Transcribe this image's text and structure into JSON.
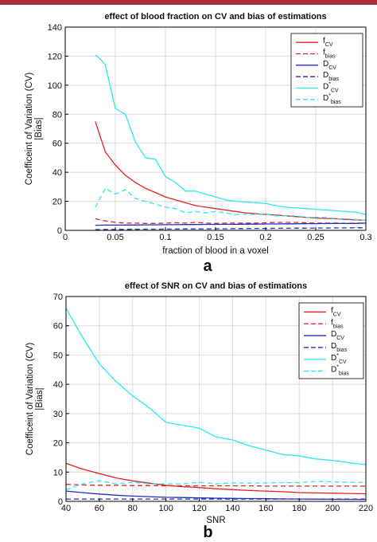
{
  "colors": {
    "topbar": "#a8323c",
    "f": "#e8201c",
    "D": "#1f2fbf",
    "Dstar": "#2ae8f0"
  },
  "chart_data": [
    {
      "type": "line",
      "panel_label": "a",
      "title": "effect of blood fraction on  CV and bias of estimations",
      "xlabel": "fraction of blood in a voxel",
      "ylabel": [
        "Coefficeint of Variation (CV)",
        "|Bias|"
      ],
      "xlim": [
        0,
        0.3
      ],
      "ylim": [
        0,
        140
      ],
      "xticks": [
        0,
        0.05,
        0.1,
        0.15,
        0.2,
        0.25,
        0.3
      ],
      "xtick_labels": [
        "0",
        "0.05",
        "0.1",
        "0.15",
        "0.2",
        "0.25",
        "0.3"
      ],
      "yticks": [
        0,
        20,
        40,
        60,
        80,
        100,
        120,
        140
      ],
      "ytick_labels": [
        "0",
        "20",
        "40",
        "60",
        "80",
        "100",
        "120",
        "140"
      ],
      "grid": true,
      "legend_position": "top-right",
      "series": [
        {
          "name": "f",
          "sub": "CV",
          "sup": "",
          "color": "#e8201c",
          "dash": "solid",
          "x": [
            0.03,
            0.04,
            0.05,
            0.06,
            0.07,
            0.08,
            0.09,
            0.1,
            0.11,
            0.12,
            0.13,
            0.14,
            0.15,
            0.16,
            0.17,
            0.18,
            0.19,
            0.2,
            0.21,
            0.22,
            0.23,
            0.24,
            0.25,
            0.26,
            0.27,
            0.28,
            0.29,
            0.3
          ],
          "y": [
            75,
            54,
            45,
            38,
            33,
            29,
            26,
            23,
            21,
            19,
            17,
            16,
            15,
            14,
            13,
            12,
            11.5,
            11,
            10.5,
            10,
            9.5,
            9,
            8.5,
            8.2,
            8,
            7.5,
            7.2,
            7
          ]
        },
        {
          "name": "f",
          "sub": "bias",
          "sup": "",
          "color": "#e8201c",
          "dash": "dashed",
          "x": [
            0.03,
            0.04,
            0.05,
            0.06,
            0.07,
            0.08,
            0.09,
            0.1,
            0.11,
            0.12,
            0.13,
            0.14,
            0.15,
            0.16,
            0.17,
            0.18,
            0.19,
            0.2,
            0.21,
            0.22,
            0.23,
            0.24,
            0.25,
            0.26,
            0.27,
            0.28,
            0.29,
            0.3
          ],
          "y": [
            8,
            6.5,
            5.5,
            5,
            5,
            4.8,
            4.8,
            5,
            5.2,
            5,
            5.5,
            5,
            4.8,
            5,
            5,
            5,
            5,
            5.2,
            5.5,
            5.5,
            5.5,
            5.2,
            5,
            5,
            5,
            4.8,
            5,
            5
          ]
        },
        {
          "name": "D",
          "sub": "CV",
          "sup": "",
          "color": "#1f2fbf",
          "dash": "solid",
          "x": [
            0.03,
            0.04,
            0.05,
            0.06,
            0.07,
            0.08,
            0.09,
            0.1,
            0.11,
            0.12,
            0.13,
            0.14,
            0.15,
            0.16,
            0.17,
            0.18,
            0.19,
            0.2,
            0.21,
            0.22,
            0.23,
            0.24,
            0.25,
            0.26,
            0.27,
            0.28,
            0.29,
            0.3
          ],
          "y": [
            3.5,
            3.6,
            3.6,
            3.7,
            3.7,
            3.8,
            3.8,
            3.9,
            3.9,
            4,
            4,
            4.1,
            4.1,
            4.2,
            4.2,
            4.3,
            4.3,
            4.4,
            4.4,
            4.5,
            4.5,
            4.6,
            4.6,
            4.7,
            4.7,
            4.8,
            4.8,
            5
          ]
        },
        {
          "name": "D",
          "sub": "bias",
          "sup": "",
          "color": "#1f2fbf",
          "dash": "dashed",
          "x": [
            0.03,
            0.04,
            0.05,
            0.06,
            0.07,
            0.08,
            0.09,
            0.1,
            0.11,
            0.12,
            0.13,
            0.14,
            0.15,
            0.16,
            0.17,
            0.18,
            0.19,
            0.2,
            0.21,
            0.22,
            0.23,
            0.24,
            0.25,
            0.26,
            0.27,
            0.28,
            0.29,
            0.3
          ],
          "y": [
            0.5,
            0.6,
            0.6,
            0.7,
            0.7,
            0.8,
            0.8,
            0.9,
            0.9,
            1,
            1,
            1,
            1.1,
            1.1,
            1.2,
            1.2,
            1.3,
            1.3,
            1.4,
            1.4,
            1.5,
            1.5,
            1.6,
            1.6,
            1.7,
            1.7,
            1.8,
            1.8
          ]
        },
        {
          "name": "D",
          "sub": "CV",
          "sup": "*",
          "color": "#2ae8f0",
          "dash": "solid",
          "x": [
            0.03,
            0.035,
            0.04,
            0.05,
            0.06,
            0.07,
            0.08,
            0.09,
            0.1,
            0.11,
            0.12,
            0.13,
            0.14,
            0.15,
            0.16,
            0.17,
            0.18,
            0.19,
            0.2,
            0.21,
            0.22,
            0.23,
            0.24,
            0.25,
            0.26,
            0.27,
            0.28,
            0.29,
            0.3
          ],
          "y": [
            121,
            118,
            114,
            84,
            80,
            61,
            50,
            49,
            37,
            33,
            27,
            27,
            25,
            23,
            21,
            20,
            19.5,
            19,
            18.5,
            17,
            16,
            15.5,
            15,
            14.5,
            14,
            13.5,
            13,
            12.5,
            11
          ]
        },
        {
          "name": "D",
          "sub": "bias",
          "sup": "*",
          "color": "#2ae8f0",
          "dash": "dashed",
          "x": [
            0.03,
            0.04,
            0.05,
            0.06,
            0.07,
            0.08,
            0.09,
            0.1,
            0.11,
            0.12,
            0.13,
            0.14,
            0.15,
            0.16,
            0.17,
            0.18,
            0.19,
            0.2,
            0.21,
            0.22,
            0.23,
            0.24,
            0.25,
            0.26,
            0.27,
            0.28,
            0.29,
            0.3
          ],
          "y": [
            16,
            29,
            25,
            28,
            22,
            20,
            18,
            16,
            15,
            12,
            13,
            12,
            13,
            12,
            11,
            11,
            11,
            11,
            10,
            10,
            10,
            9,
            9,
            9,
            8,
            8,
            7.5,
            7
          ]
        }
      ]
    },
    {
      "type": "line",
      "panel_label": "b",
      "title": "effect of SNR on  CV and bias of estimations",
      "xlabel": "SNR",
      "ylabel": [
        "Coefficeint of Variation (CV)",
        "|Bias|"
      ],
      "xlim": [
        40,
        220
      ],
      "ylim": [
        0,
        70
      ],
      "xticks": [
        40,
        60,
        80,
        100,
        120,
        140,
        160,
        180,
        200,
        220
      ],
      "xtick_labels": [
        "40",
        "60",
        "80",
        "100",
        "120",
        "140",
        "160",
        "180",
        "200",
        "220"
      ],
      "yticks": [
        0,
        10,
        20,
        30,
        40,
        50,
        60,
        70
      ],
      "ytick_labels": [
        "0",
        "10",
        "20",
        "30",
        "40",
        "50",
        "60",
        "70"
      ],
      "grid": true,
      "legend_position": "top-right",
      "series": [
        {
          "name": "f",
          "sub": "CV",
          "sup": "",
          "color": "#e8201c",
          "dash": "solid",
          "x": [
            40,
            50,
            60,
            70,
            80,
            90,
            100,
            110,
            120,
            130,
            140,
            150,
            160,
            170,
            180,
            190,
            200,
            210,
            220
          ],
          "y": [
            13,
            11,
            9.5,
            8,
            7,
            6.2,
            5.5,
            5,
            4.7,
            4.3,
            4,
            3.7,
            3.5,
            3.3,
            3,
            2.9,
            2.8,
            2.7,
            2.6
          ]
        },
        {
          "name": "f",
          "sub": "bias",
          "sup": "",
          "color": "#e8201c",
          "dash": "dashed",
          "x": [
            40,
            50,
            60,
            70,
            80,
            90,
            100,
            110,
            120,
            130,
            140,
            150,
            160,
            170,
            180,
            190,
            200,
            210,
            220
          ],
          "y": [
            5.8,
            5.6,
            5.5,
            5.5,
            5.4,
            5.4,
            5.3,
            5.3,
            5.3,
            5.3,
            5.3,
            5.3,
            5.2,
            5.2,
            5.2,
            5.2,
            5.2,
            5.2,
            5.2
          ]
        },
        {
          "name": "D",
          "sub": "CV",
          "sup": "",
          "color": "#1f2fbf",
          "dash": "solid",
          "x": [
            40,
            50,
            60,
            70,
            80,
            90,
            100,
            110,
            120,
            130,
            140,
            150,
            160,
            170,
            180,
            190,
            200,
            210,
            220
          ],
          "y": [
            3.5,
            3,
            2.5,
            2.1,
            1.8,
            1.6,
            1.4,
            1.3,
            1.2,
            1.1,
            1,
            0.95,
            0.9,
            0.85,
            0.8,
            0.75,
            0.7,
            0.68,
            0.65
          ]
        },
        {
          "name": "D",
          "sub": "bias",
          "sup": "",
          "color": "#1f2fbf",
          "dash": "dashed",
          "x": [
            40,
            60,
            80,
            100,
            120,
            140,
            160,
            180,
            200,
            220
          ],
          "y": [
            0.8,
            0.8,
            0.8,
            0.8,
            0.8,
            0.8,
            0.8,
            0.8,
            0.8,
            0.8
          ]
        },
        {
          "name": "D",
          "sub": "CV",
          "sup": "*",
          "color": "#2ae8f0",
          "dash": "solid",
          "x": [
            40,
            50,
            60,
            70,
            80,
            90,
            100,
            110,
            120,
            130,
            140,
            150,
            160,
            170,
            180,
            190,
            200,
            210,
            220
          ],
          "y": [
            66,
            56,
            47,
            41,
            36,
            32,
            27,
            26,
            25,
            22,
            21,
            19,
            17.5,
            16,
            15.5,
            14.5,
            14,
            13.2,
            12.5
          ]
        },
        {
          "name": "D",
          "sub": "bias",
          "sup": "*",
          "color": "#2ae8f0",
          "dash": "dashed",
          "x": [
            40,
            50,
            60,
            70,
            80,
            90,
            100,
            110,
            120,
            130,
            140,
            150,
            160,
            170,
            180,
            190,
            200,
            210,
            220
          ],
          "y": [
            4,
            6,
            7,
            6,
            6.5,
            6,
            6,
            6,
            6.5,
            6,
            6.3,
            6.2,
            6.3,
            6.4,
            6.4,
            6.8,
            6.7,
            6.5,
            6.5
          ]
        }
      ]
    }
  ]
}
